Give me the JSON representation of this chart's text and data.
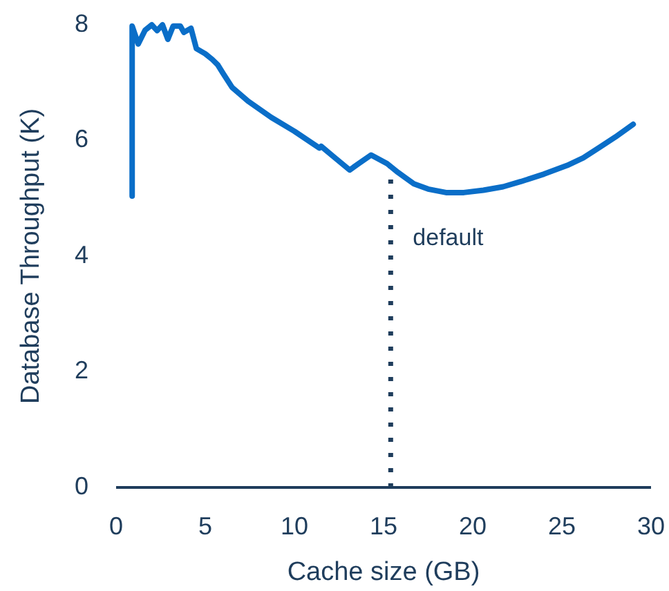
{
  "chart_data": {
    "type": "line",
    "xlabel": "Cache size (GB)",
    "ylabel": "Database Throughput (K)",
    "xlim": [
      0,
      30
    ],
    "xticks": [
      0,
      5,
      10,
      15,
      20,
      25,
      30
    ],
    "ylim": [
      0,
      8
    ],
    "yticks": [
      0,
      2,
      4,
      6,
      8
    ],
    "grid": false,
    "marker": "none",
    "line_style": "solid",
    "series": [
      {
        "color": "#0a6ec8",
        "x": [
          0.9,
          0.9,
          1.24,
          1.63,
          2.0,
          2.3,
          2.6,
          2.9,
          3.2,
          3.6,
          3.8,
          4.2,
          4.5,
          5.0,
          5.4,
          5.7,
          6.0,
          6.5,
          7.4,
          8.7,
          10.0,
          11.4,
          11.5,
          12.2,
          13.1,
          13.6,
          14.3,
          15.2,
          15.8,
          16.7,
          17.5,
          18.5,
          19.5,
          20.6,
          21.7,
          22.7,
          24.0,
          25.3,
          26.2,
          27.1,
          28.0,
          29.0
        ],
        "values": [
          5.04,
          7.98,
          7.67,
          7.91,
          8.0,
          7.9,
          8.0,
          7.75,
          7.98,
          7.98,
          7.87,
          7.94,
          7.59,
          7.5,
          7.4,
          7.31,
          7.16,
          6.92,
          6.68,
          6.4,
          6.16,
          5.87,
          5.9,
          5.72,
          5.49,
          5.6,
          5.75,
          5.6,
          5.45,
          5.25,
          5.16,
          5.1,
          5.1,
          5.14,
          5.2,
          5.29,
          5.42,
          5.57,
          5.7,
          5.88,
          6.06,
          6.28
        ]
      }
    ],
    "ref_lines": [
      {
        "axis": "x",
        "value": 15.4,
        "label": "default",
        "color": "#1f3d5c",
        "line_style": "dotted"
      }
    ]
  }
}
